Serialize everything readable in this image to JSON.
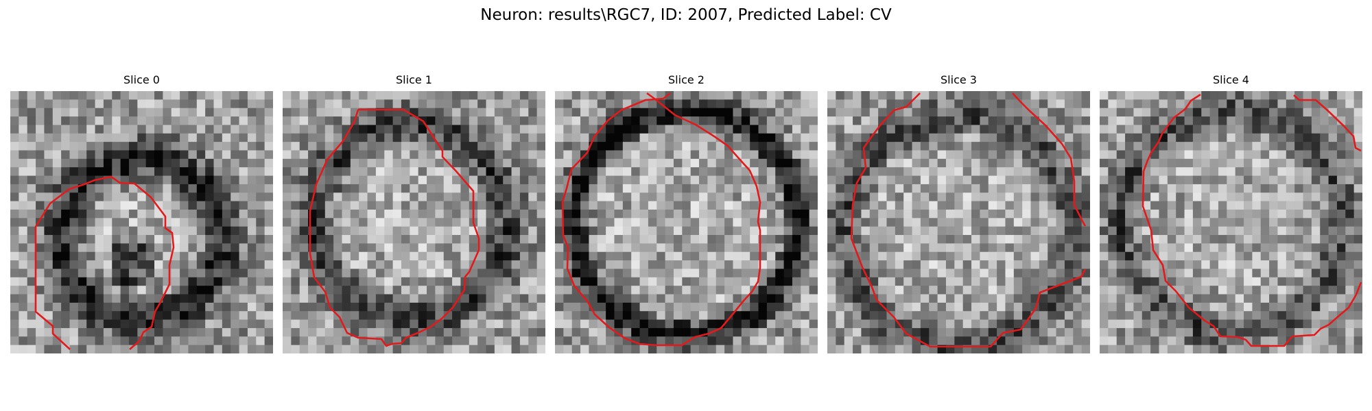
{
  "figure": {
    "title": "Neuron: results\\RGC7, ID: 2007, Predicted Label: CV",
    "contour_color": "#e31a1c",
    "colormap": "grayscale"
  },
  "slices": [
    {
      "title": "Slice 0"
    },
    {
      "title": "Slice 1"
    },
    {
      "title": "Slice 2"
    },
    {
      "title": "Slice 3"
    },
    {
      "title": "Slice 4"
    }
  ]
}
